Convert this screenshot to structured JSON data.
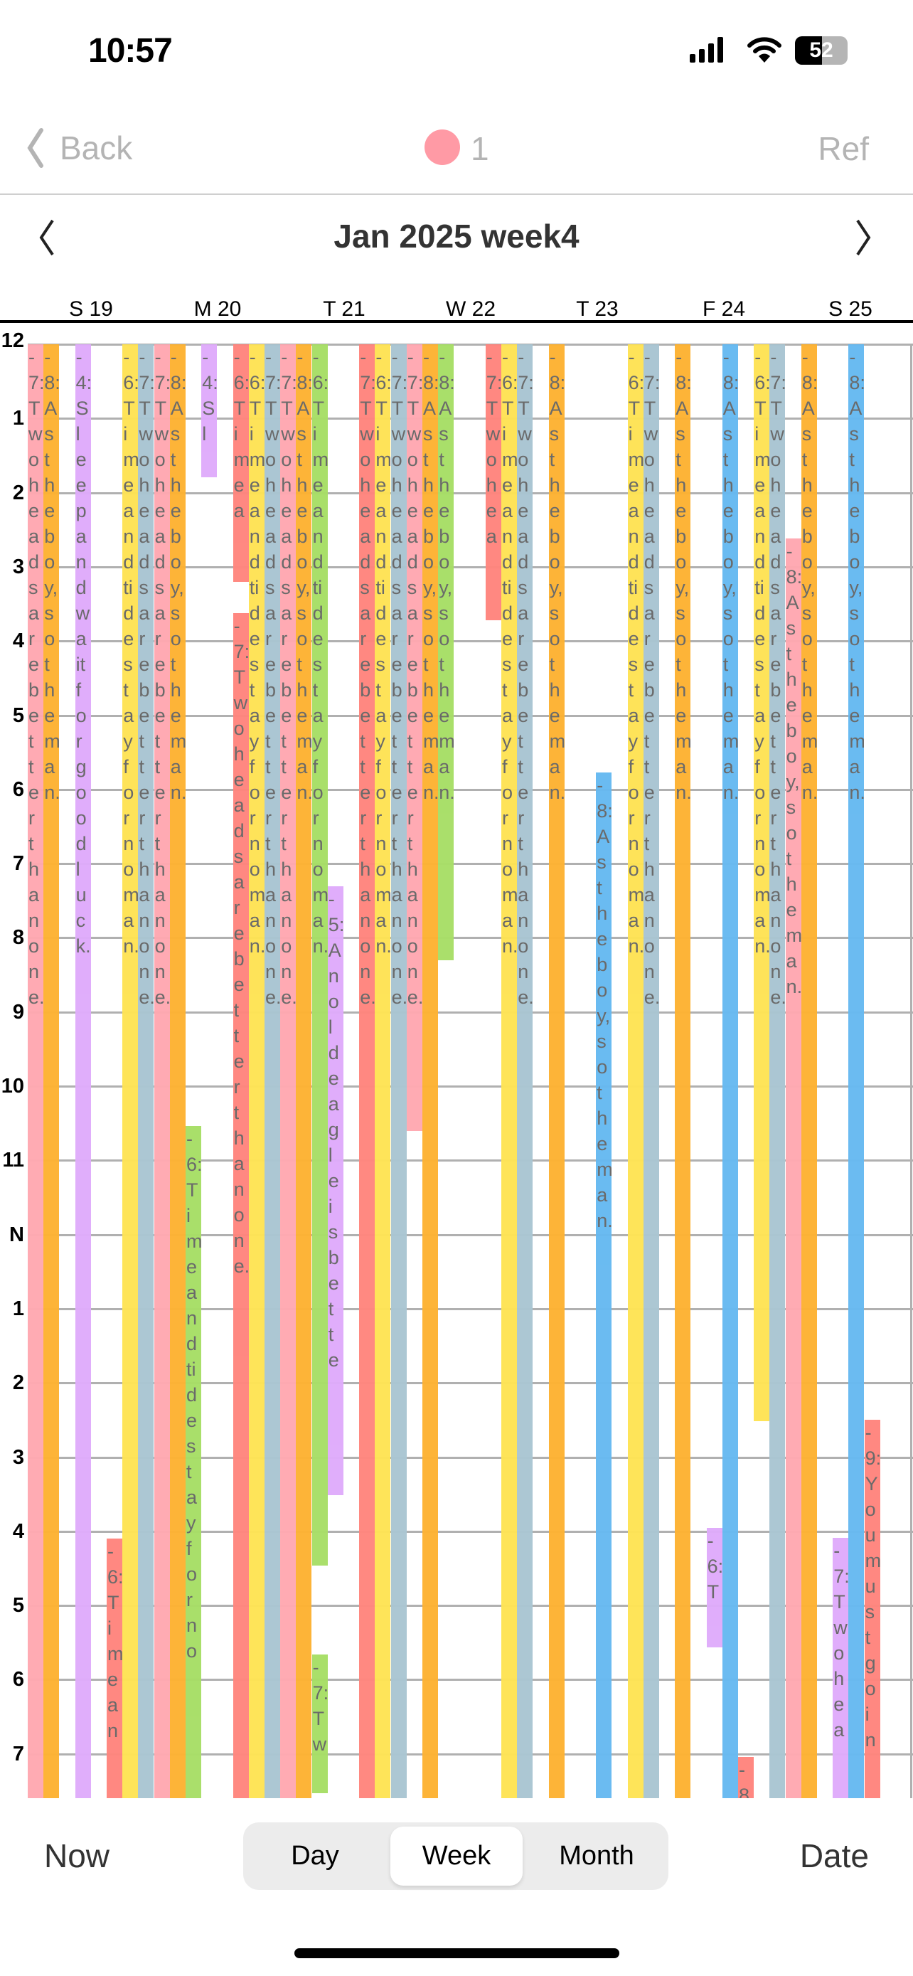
{
  "status": {
    "time": "10:57",
    "battery": "52"
  },
  "nav": {
    "back_label": "Back",
    "count": "1",
    "right_label": "Ref",
    "dot_color": "#ff9aa5"
  },
  "header": {
    "title": "Jan 2025 week4"
  },
  "days": [
    "S 19",
    "M 20",
    "T 21",
    "W 22",
    "T 23",
    "F 24",
    "S 25"
  ],
  "hours": [
    "12",
    "1",
    "2",
    "3",
    "4",
    "5",
    "6",
    "7",
    "8",
    "9",
    "10",
    "11",
    "N",
    "1",
    "2",
    "3",
    "4",
    "5",
    "6",
    "7"
  ],
  "colors": {
    "pink": "#ffa8b1",
    "orange": "#fdb232",
    "purple": "#dfabfb",
    "red": "#ff857d",
    "yellow": "#fee354",
    "bluegray": "#a9c5d2",
    "green": "#a7de66",
    "blue": "#66b9f1"
  },
  "events": [
    {
      "day": 0,
      "lane": 0,
      "color": "pink",
      "start": 0,
      "end": 19.6,
      "text": "-7:Two heads are better than one."
    },
    {
      "day": 0,
      "lane": 1,
      "color": "orange",
      "start": 0,
      "end": 19.6,
      "text": "-8:As the boy, so the man."
    },
    {
      "day": 0,
      "lane": 3,
      "color": "purple",
      "start": 0,
      "end": 19.6,
      "text": "-4:Sleep and wait for good luck."
    },
    {
      "day": 0,
      "lane": 5,
      "color": "red",
      "start": 16.1,
      "end": 19.6,
      "text": "-6:Time an"
    },
    {
      "day": 0,
      "lane": 6,
      "color": "yellow",
      "start": 0,
      "end": 19.6,
      "text": "-6:Time and tide stay for no man."
    },
    {
      "day": 0,
      "lane": 7,
      "color": "bluegray",
      "start": 0,
      "end": 19.6,
      "text": "-7:Two heads are better than one."
    },
    {
      "day": 1,
      "lane": 0,
      "color": "pink",
      "start": 0,
      "end": 19.6,
      "text": "-7:Two heads are better than one."
    },
    {
      "day": 1,
      "lane": 1,
      "color": "orange",
      "start": 0,
      "end": 19.6,
      "text": "-8:As the boy, so the man."
    },
    {
      "day": 1,
      "lane": 2,
      "color": "green",
      "start": 10.54,
      "end": 19.6,
      "text": "-6:Time and tide stay for no"
    },
    {
      "day": 1,
      "lane": 3,
      "color": "purple",
      "start": 0,
      "end": 1.79,
      "text": "-4:Sl"
    },
    {
      "day": 1,
      "lane": 5,
      "color": "red",
      "start": 0,
      "end": 3.2,
      "text": "-6:Time a"
    },
    {
      "day": 1,
      "lane": 5,
      "color": "red",
      "start": 3.62,
      "end": 19.6,
      "text": "-7:Two heads are better than one."
    },
    {
      "day": 1,
      "lane": 6,
      "color": "yellow",
      "start": 0,
      "end": 19.6,
      "text": "-6:Time and tide stay for no man."
    },
    {
      "day": 1,
      "lane": 7,
      "color": "bluegray",
      "start": 0,
      "end": 19.6,
      "text": "-7:Two heads are better than one."
    },
    {
      "day": 2,
      "lane": 0,
      "color": "pink",
      "start": 0,
      "end": 19.6,
      "text": "-7:Two heads are better than one."
    },
    {
      "day": 2,
      "lane": 1,
      "color": "orange",
      "start": 0,
      "end": 19.6,
      "text": "-8:As the boy, so the man."
    },
    {
      "day": 2,
      "lane": 2,
      "color": "green",
      "start": 0,
      "end": 16.46,
      "text": "-6:Time and tide stay for no man."
    },
    {
      "day": 2,
      "lane": 2,
      "color": "green",
      "start": 17.66,
      "end": 19.53,
      "text": "-7:Tw"
    },
    {
      "day": 2,
      "lane": 3,
      "color": "purple",
      "start": 7.31,
      "end": 15.51,
      "text": "-5:An old eagle is bette"
    },
    {
      "day": 2,
      "lane": 5,
      "color": "red",
      "start": 0,
      "end": 19.6,
      "text": "-7:Two heads are better than one."
    },
    {
      "day": 2,
      "lane": 6,
      "color": "yellow",
      "start": 0,
      "end": 19.6,
      "text": "-6:Time and tide stay for no man."
    },
    {
      "day": 2,
      "lane": 7,
      "color": "bluegray",
      "start": 0,
      "end": 19.6,
      "text": "-7:Two heads are better than one."
    },
    {
      "day": 3,
      "lane": 0,
      "color": "pink",
      "start": 0,
      "end": 10.6,
      "text": "-7:Two heads are better than one."
    },
    {
      "day": 3,
      "lane": 1,
      "color": "orange",
      "start": 0,
      "end": 19.6,
      "text": "-8:As the boy, so the man."
    },
    {
      "day": 3,
      "lane": 2,
      "color": "green",
      "start": 0,
      "end": 8.3,
      "text": "-8:As the boy, so the man."
    },
    {
      "day": 3,
      "lane": 5,
      "color": "red",
      "start": 0,
      "end": 3.72,
      "text": "-7:Two hea"
    },
    {
      "day": 3,
      "lane": 6,
      "color": "yellow",
      "start": 0,
      "end": 19.6,
      "text": "-6:Time and tide stay for no man."
    },
    {
      "day": 3,
      "lane": 7,
      "color": "bluegray",
      "start": 0,
      "end": 19.6,
      "text": "-7:Two heads are better than one."
    },
    {
      "day": 4,
      "lane": 1,
      "color": "orange",
      "start": 0,
      "end": 19.6,
      "text": "-8:As the boy, so the man."
    },
    {
      "day": 4,
      "lane": 4,
      "color": "blue",
      "start": 5.77,
      "end": 19.6,
      "text": "-8:As the boy, so the man."
    },
    {
      "day": 4,
      "lane": 6,
      "color": "yellow",
      "start": 0,
      "end": 19.6,
      "text": "-6:Time and tide stay for no man."
    },
    {
      "day": 4,
      "lane": 7,
      "color": "bluegray",
      "start": 0,
      "end": 19.6,
      "text": "-7:Two heads are better than one."
    },
    {
      "day": 5,
      "lane": 1,
      "color": "orange",
      "start": 0,
      "end": 19.6,
      "text": "-8:As the boy, so the man."
    },
    {
      "day": 5,
      "lane": 3,
      "color": "purple",
      "start": 15.95,
      "end": 17.56,
      "text": "-6:T"
    },
    {
      "day": 5,
      "lane": 4,
      "color": "blue",
      "start": 0,
      "end": 19.6,
      "text": "-8:As the boy, so the man."
    },
    {
      "day": 5,
      "lane": 5,
      "color": "red",
      "start": 19.04,
      "end": 19.6,
      "text": "-8"
    },
    {
      "day": 5,
      "lane": 6,
      "color": "yellow",
      "start": 0,
      "end": 14.52,
      "text": "-6:Time and tide stay for no man."
    },
    {
      "day": 5,
      "lane": 7,
      "color": "bluegray",
      "start": 0,
      "end": 19.6,
      "text": "-7:Two heads are better than one."
    },
    {
      "day": 6,
      "lane": 0,
      "color": "pink",
      "start": 2.62,
      "end": 19.6,
      "text": "-8:As the boy, so the man."
    },
    {
      "day": 6,
      "lane": 1,
      "color": "orange",
      "start": 0,
      "end": 19.6,
      "text": "-8:As the boy, so the man."
    },
    {
      "day": 6,
      "lane": 3,
      "color": "purple",
      "start": 16.09,
      "end": 19.6,
      "text": "-7:Two hea"
    },
    {
      "day": 6,
      "lane": 4,
      "color": "blue",
      "start": 0,
      "end": 19.6,
      "text": "-8:As the boy, so the man."
    },
    {
      "day": 6,
      "lane": 5,
      "color": "red",
      "start": 14.5,
      "end": 19.6,
      "text": "-9:You mustgoin"
    }
  ],
  "footer": {
    "now_label": "Now",
    "date_label": "Date",
    "segments": [
      "Day",
      "Week",
      "Month"
    ],
    "selected": "Week"
  }
}
